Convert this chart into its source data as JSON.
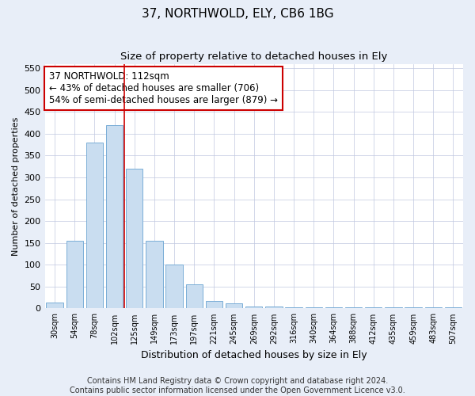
{
  "title": "37, NORTHWOLD, ELY, CB6 1BG",
  "subtitle": "Size of property relative to detached houses in Ely",
  "xlabel": "Distribution of detached houses by size in Ely",
  "ylabel": "Number of detached properties",
  "categories": [
    "30sqm",
    "54sqm",
    "78sqm",
    "102sqm",
    "125sqm",
    "149sqm",
    "173sqm",
    "197sqm",
    "221sqm",
    "245sqm",
    "269sqm",
    "292sqm",
    "316sqm",
    "340sqm",
    "364sqm",
    "388sqm",
    "412sqm",
    "435sqm",
    "459sqm",
    "483sqm",
    "507sqm"
  ],
  "values": [
    13,
    155,
    380,
    420,
    320,
    155,
    100,
    55,
    18,
    12,
    5,
    5,
    3,
    2,
    3,
    3,
    2,
    2,
    2,
    2,
    3
  ],
  "bar_color": "#c9ddf0",
  "bar_edge_color": "#7aaed6",
  "property_line_x": 3.5,
  "property_line_color": "#cc0000",
  "annotation_line1": "37 NORTHWOLD: 112sqm",
  "annotation_line2": "← 43% of detached houses are smaller (706)",
  "annotation_line3": "54% of semi-detached houses are larger (879) →",
  "annotation_box_color": "#cc0000",
  "ylim": [
    0,
    560
  ],
  "yticks": [
    0,
    50,
    100,
    150,
    200,
    250,
    300,
    350,
    400,
    450,
    500,
    550
  ],
  "footer_text": "Contains HM Land Registry data © Crown copyright and database right 2024.\nContains public sector information licensed under the Open Government Licence v3.0.",
  "background_color": "#e8eef8",
  "plot_background_color": "#ffffff",
  "title_fontsize": 11,
  "subtitle_fontsize": 9.5,
  "annotation_fontsize": 8.5,
  "footer_fontsize": 7,
  "ylabel_fontsize": 8,
  "xlabel_fontsize": 9
}
